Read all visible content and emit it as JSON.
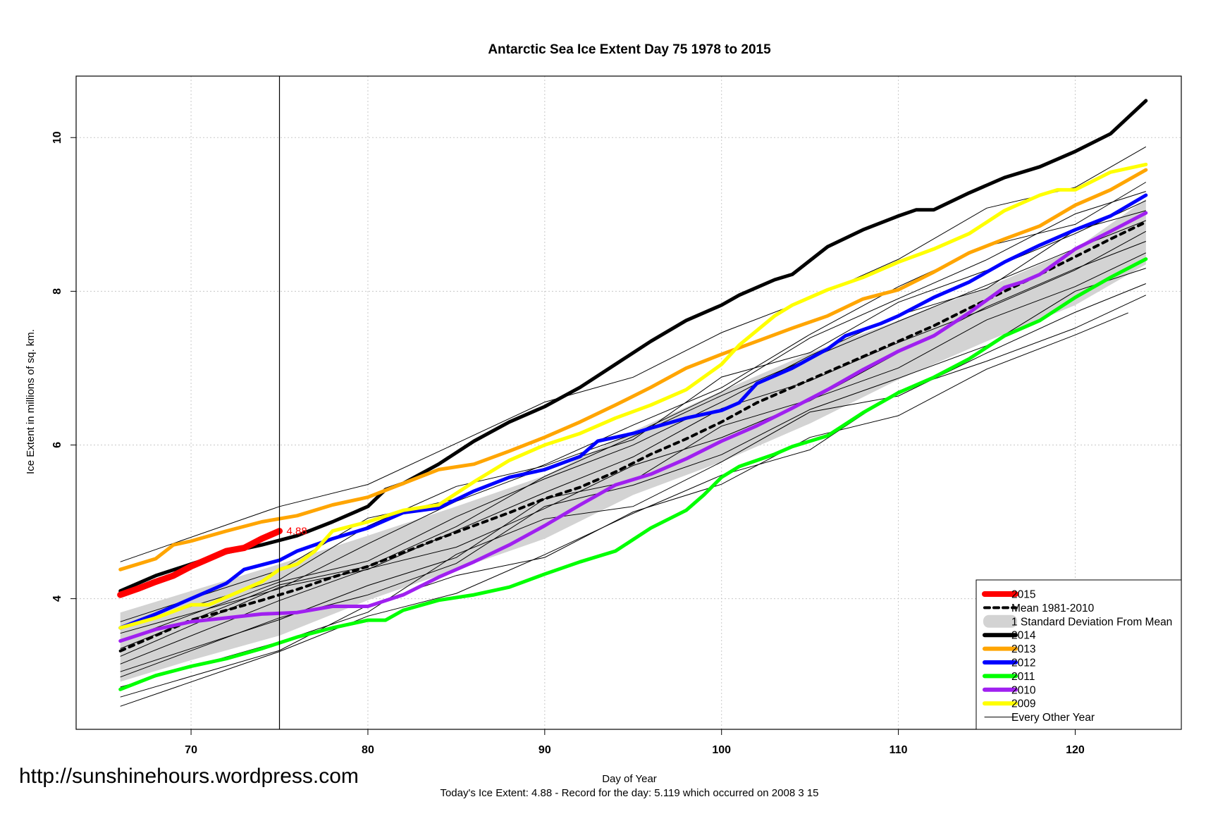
{
  "watermark_url": "http://sunshinehours.wordpress.com",
  "chart_data": {
    "type": "line",
    "title": "Antarctic Sea Ice Extent Day 75 1978 to 2015",
    "xlabel": "Day of Year",
    "ylabel": "Ice Extent in millions of sq. km.",
    "footer": "Today's Ice Extent: 4.88  - Record for the day: 5.119 which occurred on 2008 3 15",
    "xlim": [
      63.5,
      126
    ],
    "ylim": [
      2.3,
      10.8
    ],
    "x_ticks": [
      70,
      80,
      90,
      100,
      110,
      120
    ],
    "y_ticks": [
      4,
      6,
      8,
      10
    ],
    "grid": true,
    "current_day": 75,
    "current_value_label": "4.88",
    "current_value": 4.88,
    "legend_position": "bottom-right",
    "legend": [
      {
        "label": "2015",
        "color": "#ff0000",
        "style": "thick"
      },
      {
        "label": "Mean 1981-2010",
        "color": "#000000",
        "style": "dashed"
      },
      {
        "label": "1 Standard Deviation From Mean",
        "color": "#d3d3d3",
        "style": "band"
      },
      {
        "label": "2014",
        "color": "#000000",
        "style": "thick"
      },
      {
        "label": "2013",
        "color": "#ffa500",
        "style": "thick"
      },
      {
        "label": "2012",
        "color": "#0000ff",
        "style": "thick"
      },
      {
        "label": "2011",
        "color": "#00ff00",
        "style": "thick"
      },
      {
        "label": "2010",
        "color": "#a020f0",
        "style": "thick"
      },
      {
        "label": "2009",
        "color": "#ffff00",
        "style": "thick"
      },
      {
        "label": "Every Other Year",
        "color": "#000000",
        "style": "thin"
      }
    ],
    "series": [
      {
        "name": "2015",
        "color": "#ff0000",
        "width": 9,
        "x": [
          66,
          67,
          68,
          69,
          70,
          71,
          72,
          73,
          74,
          75
        ],
        "y": [
          4.05,
          4.13,
          4.22,
          4.3,
          4.42,
          4.52,
          4.62,
          4.66,
          4.78,
          4.88
        ]
      },
      {
        "name": "2014",
        "color": "#000000",
        "width": 5,
        "x": [
          66,
          68,
          70,
          72,
          74,
          76,
          78,
          80,
          81,
          82,
          84,
          86,
          88,
          90,
          92,
          94,
          96,
          98,
          100,
          101,
          103,
          104,
          106,
          108,
          110,
          111,
          112,
          114,
          116,
          118,
          120,
          122,
          124
        ],
        "y": [
          4.1,
          4.3,
          4.45,
          4.6,
          4.7,
          4.82,
          5.0,
          5.2,
          5.42,
          5.5,
          5.75,
          6.05,
          6.3,
          6.5,
          6.75,
          7.05,
          7.35,
          7.62,
          7.82,
          7.95,
          8.15,
          8.22,
          8.58,
          8.8,
          8.98,
          9.06,
          9.06,
          9.28,
          9.48,
          9.62,
          9.82,
          10.05,
          10.48
        ]
      },
      {
        "name": "2013",
        "color": "#ffa500",
        "width": 5,
        "x": [
          66,
          68,
          69,
          70,
          72,
          74,
          76,
          78,
          80,
          82,
          84,
          86,
          88,
          90,
          92,
          94,
          96,
          98,
          100,
          102,
          104,
          106,
          108,
          110,
          112,
          114,
          116,
          118,
          120,
          122,
          124
        ],
        "y": [
          4.38,
          4.52,
          4.7,
          4.75,
          4.88,
          5.0,
          5.08,
          5.22,
          5.32,
          5.5,
          5.68,
          5.75,
          5.92,
          6.1,
          6.3,
          6.52,
          6.75,
          7.0,
          7.18,
          7.35,
          7.52,
          7.68,
          7.9,
          8.02,
          8.25,
          8.5,
          8.68,
          8.85,
          9.12,
          9.32,
          9.58
        ]
      },
      {
        "name": "2012",
        "color": "#0000ff",
        "width": 5,
        "x": [
          66,
          68,
          70,
          72,
          73,
          75,
          76,
          78,
          80,
          82,
          84,
          86,
          88,
          90,
          92,
          93,
          95,
          96,
          98,
          100,
          101,
          102,
          104,
          106,
          107,
          109,
          110,
          112,
          114,
          116,
          118,
          120,
          122,
          124
        ],
        "y": [
          3.62,
          3.8,
          4.0,
          4.2,
          4.38,
          4.5,
          4.62,
          4.78,
          4.92,
          5.12,
          5.18,
          5.4,
          5.58,
          5.68,
          5.85,
          6.05,
          6.15,
          6.22,
          6.35,
          6.45,
          6.55,
          6.8,
          7.0,
          7.25,
          7.42,
          7.58,
          7.68,
          7.92,
          8.12,
          8.38,
          8.6,
          8.8,
          8.98,
          9.25
        ]
      },
      {
        "name": "2011",
        "color": "#00ff00",
        "width": 5,
        "x": [
          66,
          68,
          70,
          72,
          74,
          76,
          78,
          80,
          81,
          82,
          84,
          86,
          88,
          90,
          92,
          94,
          96,
          98,
          99,
          100,
          101,
          103,
          104,
          106,
          108,
          110,
          112,
          114,
          116,
          118,
          120,
          122,
          124
        ],
        "y": [
          2.82,
          3.0,
          3.12,
          3.22,
          3.35,
          3.5,
          3.62,
          3.72,
          3.72,
          3.85,
          3.98,
          4.05,
          4.15,
          4.32,
          4.48,
          4.62,
          4.92,
          5.15,
          5.35,
          5.58,
          5.72,
          5.88,
          5.98,
          6.12,
          6.42,
          6.68,
          6.88,
          7.12,
          7.42,
          7.62,
          7.92,
          8.18,
          8.42
        ]
      },
      {
        "name": "2010",
        "color": "#a020f0",
        "width": 5,
        "x": [
          66,
          68,
          70,
          72,
          74,
          76,
          78,
          80,
          82,
          84,
          86,
          88,
          90,
          92,
          94,
          96,
          98,
          100,
          102,
          104,
          106,
          108,
          110,
          112,
          114,
          116,
          117,
          118,
          120,
          122,
          124
        ],
        "y": [
          3.45,
          3.6,
          3.7,
          3.75,
          3.8,
          3.82,
          3.9,
          3.9,
          4.05,
          4.28,
          4.48,
          4.7,
          4.95,
          5.22,
          5.48,
          5.62,
          5.82,
          6.05,
          6.25,
          6.48,
          6.72,
          6.98,
          7.22,
          7.42,
          7.72,
          8.05,
          8.12,
          8.22,
          8.55,
          8.78,
          9.02
        ]
      },
      {
        "name": "2009",
        "color": "#ffff00",
        "width": 5,
        "x": [
          66,
          68,
          70,
          71,
          72,
          74,
          75,
          76,
          77,
          78,
          80,
          82,
          84,
          86,
          88,
          90,
          92,
          94,
          96,
          98,
          100,
          101,
          103,
          104,
          106,
          108,
          110,
          112,
          114,
          116,
          118,
          119,
          120,
          122,
          124
        ],
        "y": [
          3.62,
          3.75,
          3.92,
          3.92,
          4.02,
          4.22,
          4.38,
          4.45,
          4.62,
          4.88,
          5.0,
          5.15,
          5.22,
          5.52,
          5.8,
          6.0,
          6.15,
          6.35,
          6.52,
          6.72,
          7.05,
          7.3,
          7.68,
          7.82,
          8.02,
          8.18,
          8.38,
          8.55,
          8.75,
          9.05,
          9.25,
          9.32,
          9.32,
          9.55,
          9.65
        ]
      },
      {
        "name": "Mean 1981-2010",
        "color": "#000000",
        "dashed": true,
        "x": [
          66,
          68,
          70,
          72,
          74,
          76,
          78,
          80,
          82,
          84,
          86,
          88,
          90,
          92,
          94,
          96,
          98,
          100,
          102,
          104,
          106,
          108,
          110,
          112,
          114,
          116,
          118,
          120,
          122,
          124
        ],
        "y": [
          3.32,
          3.52,
          3.72,
          3.85,
          3.98,
          4.12,
          4.28,
          4.42,
          4.6,
          4.78,
          4.95,
          5.12,
          5.3,
          5.45,
          5.65,
          5.88,
          6.08,
          6.3,
          6.55,
          6.75,
          6.95,
          7.15,
          7.35,
          7.55,
          7.78,
          8.0,
          8.22,
          8.45,
          8.68,
          8.9
        ]
      }
    ],
    "std_band": {
      "x": [
        66,
        70,
        75,
        80,
        85,
        90,
        95,
        100,
        105,
        110,
        115,
        120,
        124
      ],
      "upper": [
        3.82,
        4.1,
        4.45,
        4.82,
        5.2,
        5.6,
        6.18,
        6.7,
        7.2,
        7.62,
        8.05,
        8.55,
        9.2
      ],
      "lower": [
        2.92,
        3.2,
        3.52,
        3.98,
        4.38,
        4.78,
        5.35,
        5.78,
        6.28,
        6.85,
        7.35,
        7.82,
        8.35
      ]
    },
    "other_years": [
      {
        "x": [
          66,
          75,
          80,
          85,
          90,
          95,
          100,
          105,
          110,
          115,
          120,
          124
        ],
        "start": 2.6,
        "end": 7.95
      },
      {
        "x": [
          66,
          75,
          80,
          85,
          90,
          95,
          100,
          105,
          110,
          115,
          120,
          123
        ],
        "start": 2.72,
        "end": 7.72
      },
      {
        "x": [
          66,
          75,
          80,
          85,
          90,
          95,
          100,
          105,
          110,
          115,
          120,
          124
        ],
        "start": 2.85,
        "end": 8.1
      },
      {
        "x": [
          66,
          75,
          80,
          85,
          90,
          95,
          100,
          105,
          110,
          115,
          120,
          124
        ],
        "start": 2.98,
        "end": 8.3
      },
      {
        "x": [
          66,
          75,
          80,
          85,
          90,
          95,
          100,
          105,
          110,
          115,
          120,
          124
        ],
        "start": 3.05,
        "end": 8.5
      },
      {
        "x": [
          66,
          75,
          80,
          85,
          90,
          95,
          100,
          105,
          110,
          115,
          120,
          124
        ],
        "start": 3.15,
        "end": 8.65
      },
      {
        "x": [
          66,
          75,
          80,
          85,
          90,
          95,
          100,
          105,
          110,
          115,
          120,
          124
        ],
        "start": 3.25,
        "end": 8.78
      },
      {
        "x": [
          66,
          75,
          80,
          85,
          90,
          95,
          100,
          105,
          110,
          115,
          120,
          124
        ],
        "start": 3.35,
        "end": 8.92
      },
      {
        "x": [
          66,
          75,
          80,
          85,
          90,
          95,
          100,
          105,
          110,
          115,
          120,
          124
        ],
        "start": 3.45,
        "end": 9.05
      },
      {
        "x": [
          66,
          75,
          80,
          85,
          90,
          95,
          100,
          105,
          110,
          115,
          120,
          124
        ],
        "start": 3.55,
        "end": 9.18
      },
      {
        "x": [
          66,
          75,
          80,
          85,
          90,
          95,
          100,
          105,
          110,
          115,
          120,
          124
        ],
        "start": 3.62,
        "end": 9.3
      },
      {
        "x": [
          66,
          75,
          80,
          85,
          90,
          95,
          100,
          105,
          110,
          115,
          120,
          124
        ],
        "start": 3.7,
        "end": 9.42
      },
      {
        "x": [
          66,
          75,
          80,
          85,
          90,
          95,
          100,
          105,
          110,
          115,
          120,
          124
        ],
        "start": 4.48,
        "end": 9.88
      }
    ]
  }
}
